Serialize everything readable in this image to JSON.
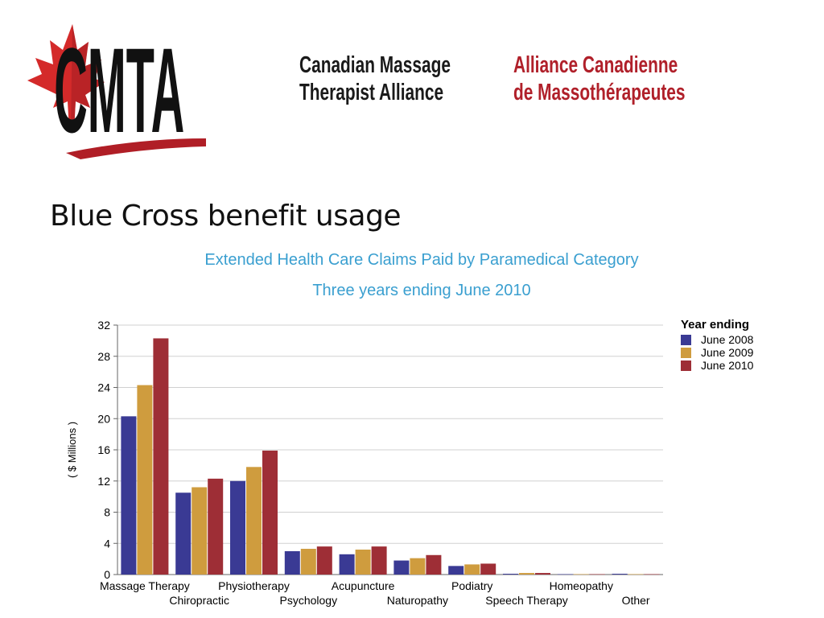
{
  "header": {
    "logo_text": "CMTA",
    "org_name_en": [
      "Canadian Massage",
      "Therapist Alliance"
    ],
    "org_name_fr": [
      "Alliance Canadienne",
      "de Massothérapeutes"
    ]
  },
  "slide": {
    "title": "Blue Cross benefit usage"
  },
  "chart_data": {
    "type": "bar",
    "title": "Extended Health Care Claims Paid by Paramedical Category",
    "subtitle": "Three years ending June 2010",
    "ylabel": "( $ Millions )",
    "ylim": [
      0,
      32
    ],
    "yticks": [
      0,
      4,
      8,
      12,
      16,
      20,
      24,
      28,
      32
    ],
    "grid": true,
    "legend_title": "Year ending",
    "legend_position": "top-right",
    "categories": [
      "Massage Therapy",
      "Chiropractic",
      "Physiotherapy",
      "Psychology",
      "Acupuncture",
      "Naturopathy",
      "Podiatry",
      "Speech Therapy",
      "Homeopathy",
      "Other"
    ],
    "series": [
      {
        "name": "June 2008",
        "color": "#3a3a94",
        "values": [
          20.3,
          10.5,
          12.0,
          3.0,
          2.6,
          1.8,
          1.1,
          0.1,
          0.05,
          0.1
        ]
      },
      {
        "name": "June 2009",
        "color": "#cf9c3e",
        "values": [
          24.3,
          11.2,
          13.8,
          3.3,
          3.2,
          2.1,
          1.3,
          0.2,
          0.05,
          0.05
        ]
      },
      {
        "name": "June 2010",
        "color": "#9e2e36",
        "values": [
          30.3,
          12.3,
          15.9,
          3.6,
          3.6,
          2.5,
          1.4,
          0.2,
          0.05,
          0.05
        ]
      }
    ]
  }
}
